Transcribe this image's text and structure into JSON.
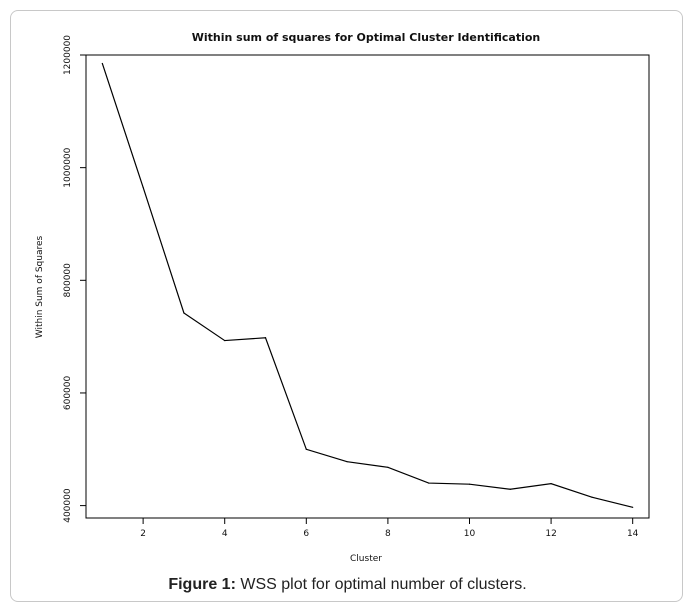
{
  "caption": {
    "label": "Figure 1:",
    "text": "WSS plot for optimal number of clusters."
  },
  "chart_data": {
    "type": "line",
    "title": "Within sum of squares for Optimal Cluster Identification",
    "xlabel": "Cluster",
    "ylabel": "Within Sum of Squares",
    "x": [
      1,
      2,
      3,
      4,
      5,
      6,
      7,
      8,
      9,
      10,
      11,
      12,
      13,
      14
    ],
    "series": [
      {
        "values": [
          1185000,
          965000,
          742000,
          693000,
          698000,
          500000,
          478000,
          468000,
          440000,
          438000,
          429000,
          439000,
          415000,
          397000
        ]
      }
    ],
    "xlim": [
      0.6,
      14.4
    ],
    "ylim": [
      378000,
      1200000
    ],
    "x_ticks": [
      2,
      4,
      6,
      8,
      10,
      12,
      14
    ],
    "x_tick_labels": [
      "2",
      "4",
      "6",
      "8",
      "10",
      "12",
      "14"
    ],
    "y_ticks": [
      400000,
      600000,
      800000,
      1000000,
      1200000
    ],
    "y_tick_labels": [
      "400000",
      "600000",
      "800000",
      "1000000",
      "1200000"
    ],
    "line_color": "#000000",
    "grid": false
  }
}
